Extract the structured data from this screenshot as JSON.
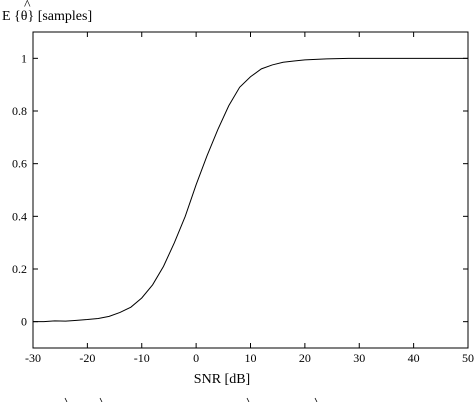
{
  "chart_data": {
    "type": "line",
    "title": "",
    "xlabel": "SNR  [dB]",
    "ylabel_main": "E {θ}  [samples]",
    "ylabel_accent": "^",
    "xlim": [
      -30,
      50
    ],
    "ylim": [
      -0.1,
      1.1
    ],
    "xticks": [
      -30,
      -20,
      -10,
      0,
      10,
      20,
      30,
      40,
      50
    ],
    "yticks": [
      0,
      0.2,
      0.4,
      0.6,
      0.8,
      1
    ],
    "grid": false,
    "series": [
      {
        "x": [
          -30,
          -28,
          -26,
          -24,
          -22,
          -20,
          -18,
          -16,
          -14,
          -12,
          -10,
          -8,
          -6,
          -4,
          -2,
          0,
          2,
          4,
          6,
          8,
          10,
          12,
          14,
          16,
          18,
          20,
          22,
          24,
          26,
          28,
          30,
          35,
          40,
          45,
          50
        ],
        "values": [
          0.0,
          0.0,
          0.003,
          0.002,
          0.005,
          0.008,
          0.012,
          0.02,
          0.035,
          0.055,
          0.09,
          0.14,
          0.21,
          0.3,
          0.4,
          0.52,
          0.63,
          0.73,
          0.82,
          0.89,
          0.93,
          0.96,
          0.975,
          0.985,
          0.99,
          0.994,
          0.996,
          0.998,
          0.999,
          1.0,
          1.0,
          1.0,
          1.0,
          1.0,
          1.0
        ]
      }
    ]
  }
}
